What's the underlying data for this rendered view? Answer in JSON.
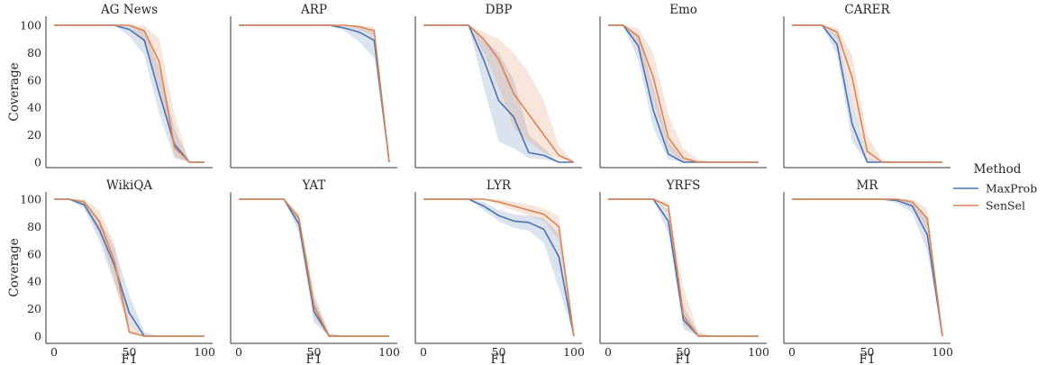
{
  "chart_data": {
    "type": "line",
    "shared": {
      "x": [
        0,
        10,
        20,
        30,
        40,
        50,
        60,
        70,
        80,
        90,
        100
      ],
      "xlabel": "F1",
      "ylabel": "Coverage",
      "xticks": [
        0,
        50,
        100
      ],
      "yticks": [
        0,
        20,
        40,
        60,
        80,
        100
      ],
      "xlim": [
        0,
        100
      ],
      "ylim": [
        0,
        100
      ],
      "legend": {
        "title": "Method",
        "position": "right",
        "entries": [
          "MaxProb",
          "SenSel"
        ]
      },
      "colors": {
        "MaxProb": "#4c72b0",
        "SenSel": "#dd8452"
      }
    },
    "panels": [
      {
        "title": "AG News",
        "series": [
          {
            "name": "MaxProb",
            "values": [
              100,
              100,
              100,
              100,
              100,
              97,
              89,
              50,
              13,
              0,
              0
            ],
            "lower": [
              100,
              100,
              100,
              100,
              100,
              92,
              78,
              35,
              3,
              0,
              0
            ],
            "upper": [
              100,
              100,
              100,
              100,
              100,
              100,
              97,
              68,
              25,
              0,
              0
            ]
          },
          {
            "name": "SenSel",
            "values": [
              100,
              100,
              100,
              100,
              100,
              100,
              96,
              73,
              11,
              0,
              0
            ],
            "lower": [
              100,
              100,
              100,
              100,
              100,
              99,
              88,
              55,
              4,
              0,
              0
            ],
            "upper": [
              100,
              100,
              100,
              100,
              100,
              100,
              100,
              90,
              35,
              0,
              0
            ]
          }
        ]
      },
      {
        "title": "ARP",
        "series": [
          {
            "name": "MaxProb",
            "values": [
              100,
              100,
              100,
              100,
              100,
              100,
              100,
              98,
              95,
              89,
              0
            ],
            "lower": [
              100,
              100,
              100,
              100,
              100,
              100,
              100,
              96,
              88,
              76,
              0
            ],
            "upper": [
              100,
              100,
              100,
              100,
              100,
              100,
              100,
              100,
              99,
              96,
              0
            ]
          },
          {
            "name": "SenSel",
            "values": [
              100,
              100,
              100,
              100,
              100,
              100,
              100,
              100,
              99,
              96,
              0
            ],
            "lower": [
              100,
              100,
              100,
              100,
              100,
              100,
              100,
              100,
              97,
              92,
              0
            ],
            "upper": [
              100,
              100,
              100,
              100,
              100,
              100,
              100,
              100,
              100,
              99,
              0
            ]
          }
        ]
      },
      {
        "title": "DBP",
        "series": [
          {
            "name": "MaxProb",
            "values": [
              100,
              100,
              100,
              100,
              75,
              45,
              33,
              7,
              5,
              0,
              0
            ],
            "lower": [
              100,
              100,
              100,
              100,
              55,
              15,
              10,
              3,
              2,
              0,
              0
            ],
            "upper": [
              100,
              100,
              100,
              100,
              90,
              80,
              60,
              20,
              10,
              0,
              0
            ]
          },
          {
            "name": "SenSel",
            "values": [
              100,
              100,
              100,
              100,
              90,
              75,
              50,
              35,
              20,
              5,
              0
            ],
            "lower": [
              100,
              100,
              100,
              100,
              80,
              55,
              25,
              15,
              7,
              2,
              0
            ],
            "upper": [
              100,
              100,
              100,
              100,
              95,
              90,
              80,
              65,
              45,
              12,
              0
            ]
          }
        ]
      },
      {
        "title": "Emo",
        "series": [
          {
            "name": "MaxProb",
            "values": [
              100,
              100,
              85,
              38,
              6,
              0,
              0,
              0,
              0,
              0,
              0
            ],
            "lower": [
              100,
              100,
              75,
              25,
              2,
              0,
              0,
              0,
              0,
              0,
              0
            ],
            "upper": [
              100,
              100,
              93,
              55,
              15,
              2,
              0,
              0,
              0,
              0,
              0
            ]
          },
          {
            "name": "SenSel",
            "values": [
              100,
              100,
              92,
              62,
              18,
              3,
              0,
              0,
              0,
              0,
              0
            ],
            "lower": [
              100,
              100,
              85,
              45,
              8,
              1,
              0,
              0,
              0,
              0,
              0
            ],
            "upper": [
              100,
              100,
              98,
              80,
              35,
              10,
              2,
              0,
              0,
              0,
              0
            ]
          }
        ]
      },
      {
        "title": "CARER",
        "series": [
          {
            "name": "MaxProb",
            "values": [
              100,
              100,
              100,
              86,
              28,
              0,
              0,
              0,
              0,
              0,
              0
            ],
            "lower": [
              100,
              100,
              100,
              78,
              15,
              0,
              0,
              0,
              0,
              0,
              0
            ],
            "upper": [
              100,
              100,
              100,
              93,
              45,
              3,
              0,
              0,
              0,
              0,
              0
            ]
          },
          {
            "name": "SenSel",
            "values": [
              100,
              100,
              100,
              95,
              62,
              8,
              0,
              0,
              0,
              0,
              0
            ],
            "lower": [
              100,
              100,
              100,
              90,
              45,
              2,
              0,
              0,
              0,
              0,
              0
            ],
            "upper": [
              100,
              100,
              100,
              98,
              78,
              20,
              2,
              0,
              0,
              0,
              0
            ]
          }
        ]
      },
      {
        "title": "WikiQA",
        "series": [
          {
            "name": "MaxProb",
            "values": [
              100,
              100,
              96,
              78,
              52,
              17,
              0,
              0,
              0,
              0,
              0
            ],
            "lower": [
              100,
              100,
              93,
              70,
              38,
              8,
              0,
              0,
              0,
              0,
              0
            ],
            "upper": [
              100,
              100,
              99,
              85,
              65,
              30,
              3,
              0,
              0,
              0,
              0
            ]
          },
          {
            "name": "SenSel",
            "values": [
              100,
              100,
              98,
              84,
              55,
              3,
              0,
              0,
              0,
              0,
              0
            ],
            "lower": [
              100,
              100,
              95,
              75,
              42,
              1,
              0,
              0,
              0,
              0,
              0
            ],
            "upper": [
              100,
              100,
              100,
              92,
              68,
              8,
              1,
              0,
              0,
              0,
              0
            ]
          }
        ]
      },
      {
        "title": "YAT",
        "series": [
          {
            "name": "MaxProb",
            "values": [
              100,
              100,
              100,
              100,
              82,
              18,
              0,
              0,
              0,
              0,
              0
            ],
            "lower": [
              100,
              100,
              100,
              100,
              75,
              10,
              0,
              0,
              0,
              0,
              0
            ],
            "upper": [
              100,
              100,
              100,
              100,
              88,
              28,
              2,
              0,
              0,
              0,
              0
            ]
          },
          {
            "name": "SenSel",
            "values": [
              100,
              100,
              100,
              100,
              86,
              22,
              0,
              0,
              0,
              0,
              0
            ],
            "lower": [
              100,
              100,
              100,
              100,
              80,
              14,
              0,
              0,
              0,
              0,
              0
            ],
            "upper": [
              100,
              100,
              100,
              100,
              90,
              32,
              2,
              0,
              0,
              0,
              0
            ]
          }
        ]
      },
      {
        "title": "LYR",
        "series": [
          {
            "name": "MaxProb",
            "values": [
              100,
              100,
              100,
              100,
              95,
              88,
              84,
              83,
              78,
              58,
              0
            ],
            "lower": [
              100,
              100,
              100,
              100,
              92,
              84,
              79,
              77,
              68,
              35,
              0
            ],
            "upper": [
              100,
              100,
              100,
              100,
              98,
              92,
              89,
              88,
              86,
              75,
              0
            ]
          },
          {
            "name": "SenSel",
            "values": [
              100,
              100,
              100,
              100,
              100,
              98,
              95,
              92,
              89,
              80,
              0
            ],
            "lower": [
              100,
              100,
              100,
              100,
              100,
              96,
              92,
              88,
              84,
              70,
              0
            ],
            "upper": [
              100,
              100,
              100,
              100,
              100,
              100,
              98,
              96,
              93,
              88,
              0
            ]
          }
        ]
      },
      {
        "title": "YRFS",
        "series": [
          {
            "name": "MaxProb",
            "values": [
              100,
              100,
              100,
              100,
              84,
              12,
              0,
              0,
              0,
              0,
              0
            ],
            "lower": [
              100,
              100,
              100,
              100,
              75,
              5,
              0,
              0,
              0,
              0,
              0
            ],
            "upper": [
              100,
              100,
              100,
              100,
              92,
              22,
              2,
              0,
              0,
              0,
              0
            ]
          },
          {
            "name": "SenSel",
            "values": [
              100,
              100,
              100,
              100,
              95,
              15,
              0,
              0,
              0,
              0,
              0
            ],
            "lower": [
              100,
              100,
              100,
              100,
              90,
              8,
              0,
              0,
              0,
              0,
              0
            ],
            "upper": [
              100,
              100,
              100,
              100,
              98,
              35,
              3,
              0,
              0,
              0,
              0
            ]
          }
        ]
      },
      {
        "title": "MR",
        "series": [
          {
            "name": "MaxProb",
            "values": [
              100,
              100,
              100,
              100,
              100,
              100,
              100,
              99,
              95,
              74,
              0
            ],
            "lower": [
              100,
              100,
              100,
              100,
              100,
              100,
              100,
              97,
              90,
              62,
              0
            ],
            "upper": [
              100,
              100,
              100,
              100,
              100,
              100,
              100,
              100,
              98,
              85,
              0
            ]
          },
          {
            "name": "SenSel",
            "values": [
              100,
              100,
              100,
              100,
              100,
              100,
              100,
              100,
              98,
              86,
              0
            ],
            "lower": [
              100,
              100,
              100,
              100,
              100,
              100,
              100,
              99,
              95,
              78,
              0
            ],
            "upper": [
              100,
              100,
              100,
              100,
              100,
              100,
              100,
              100,
              100,
              93,
              0
            ]
          }
        ]
      }
    ]
  }
}
